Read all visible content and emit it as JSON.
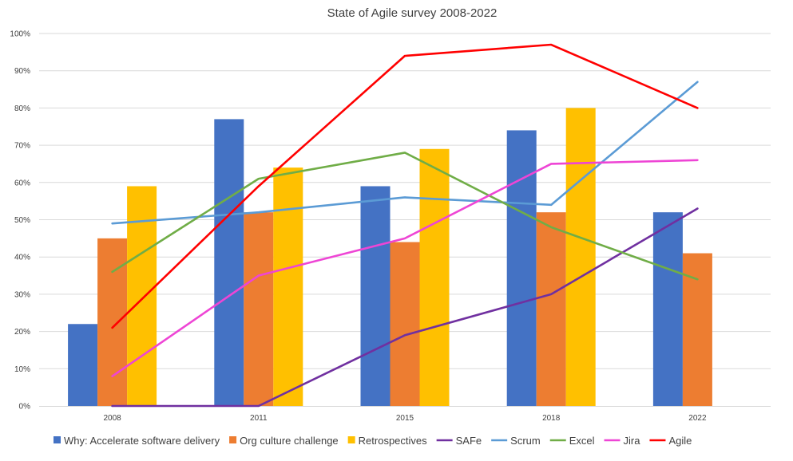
{
  "chart_data": {
    "type": "bar",
    "title": "State of Agile survey 2008-2022",
    "categories": [
      "2008",
      "2011",
      "2015",
      "2018",
      "2022"
    ],
    "y_ticks": [
      "0%",
      "10%",
      "20%",
      "30%",
      "40%",
      "50%",
      "60%",
      "70%",
      "80%",
      "90%",
      "100%"
    ],
    "ylim": [
      0,
      100
    ],
    "grid": true,
    "legend_position": "bottom",
    "bar_series": [
      {
        "name": "Why: Accelerate software delivery",
        "color": "#4472C4",
        "values": [
          22,
          77,
          59,
          74,
          52
        ]
      },
      {
        "name": "Org culture challenge",
        "color": "#ED7D31",
        "values": [
          45,
          52,
          44,
          52,
          41
        ]
      },
      {
        "name": "Retrospectives",
        "color": "#FFC000",
        "values": [
          59,
          64,
          69,
          80,
          null
        ]
      }
    ],
    "line_series": [
      {
        "name": "SAFe",
        "color": "#7030A0",
        "values": [
          0,
          0,
          19,
          30,
          53
        ]
      },
      {
        "name": "Scrum",
        "color": "#5B9BD5",
        "values": [
          49,
          52,
          56,
          54,
          87
        ]
      },
      {
        "name": "Excel",
        "color": "#70AD47",
        "values": [
          36,
          61,
          68,
          48,
          34
        ]
      },
      {
        "name": "Jira",
        "color": "#EE45D5",
        "values": [
          8,
          35,
          45,
          65,
          66
        ]
      },
      {
        "name": "Agile",
        "color": "#FF0000",
        "values": [
          21,
          59,
          94,
          97,
          80
        ]
      }
    ]
  }
}
